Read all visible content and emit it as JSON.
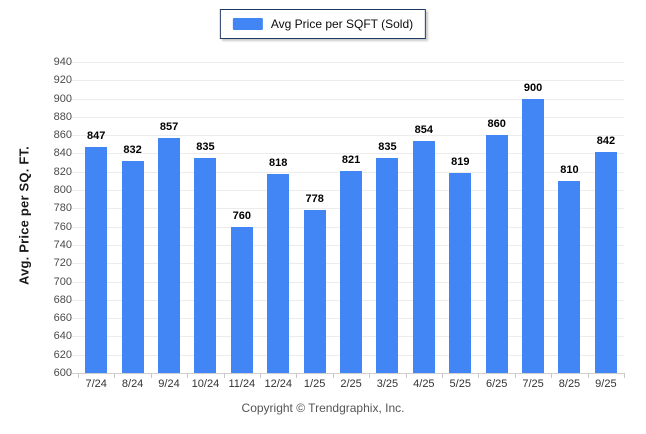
{
  "legend": {
    "label": "Avg Price per SQFT (Sold)"
  },
  "footer": {
    "copyright": "Copyright © Trendgraphix, Inc."
  },
  "colors": {
    "bar": "#4285f4",
    "legend_border": "#1f3864",
    "gridline": "#ececec",
    "axis_line": "#cfcfcf",
    "value_label": "#000000",
    "tick_label": "#4a4a4a"
  },
  "chart_data": {
    "type": "bar",
    "title": "",
    "xlabel": "",
    "ylabel": "Avg. Price per SQ. FT.",
    "categories": [
      "7/24",
      "8/24",
      "9/24",
      "10/24",
      "11/24",
      "12/24",
      "1/25",
      "2/25",
      "3/25",
      "4/25",
      "5/25",
      "6/25",
      "7/25",
      "8/25",
      "9/25"
    ],
    "series": [
      {
        "name": "Avg Price per SQFT (Sold)",
        "values": [
          847,
          832,
          857,
          835,
          760,
          818,
          778,
          821,
          835,
          854,
          819,
          860,
          900,
          810,
          842
        ]
      }
    ],
    "ylim": [
      600,
      940
    ],
    "yticks": [
      600,
      620,
      640,
      660,
      680,
      700,
      720,
      740,
      760,
      780,
      800,
      820,
      840,
      860,
      880,
      900,
      920,
      940
    ],
    "grid": "horizontal",
    "legend_position": "top-center"
  }
}
